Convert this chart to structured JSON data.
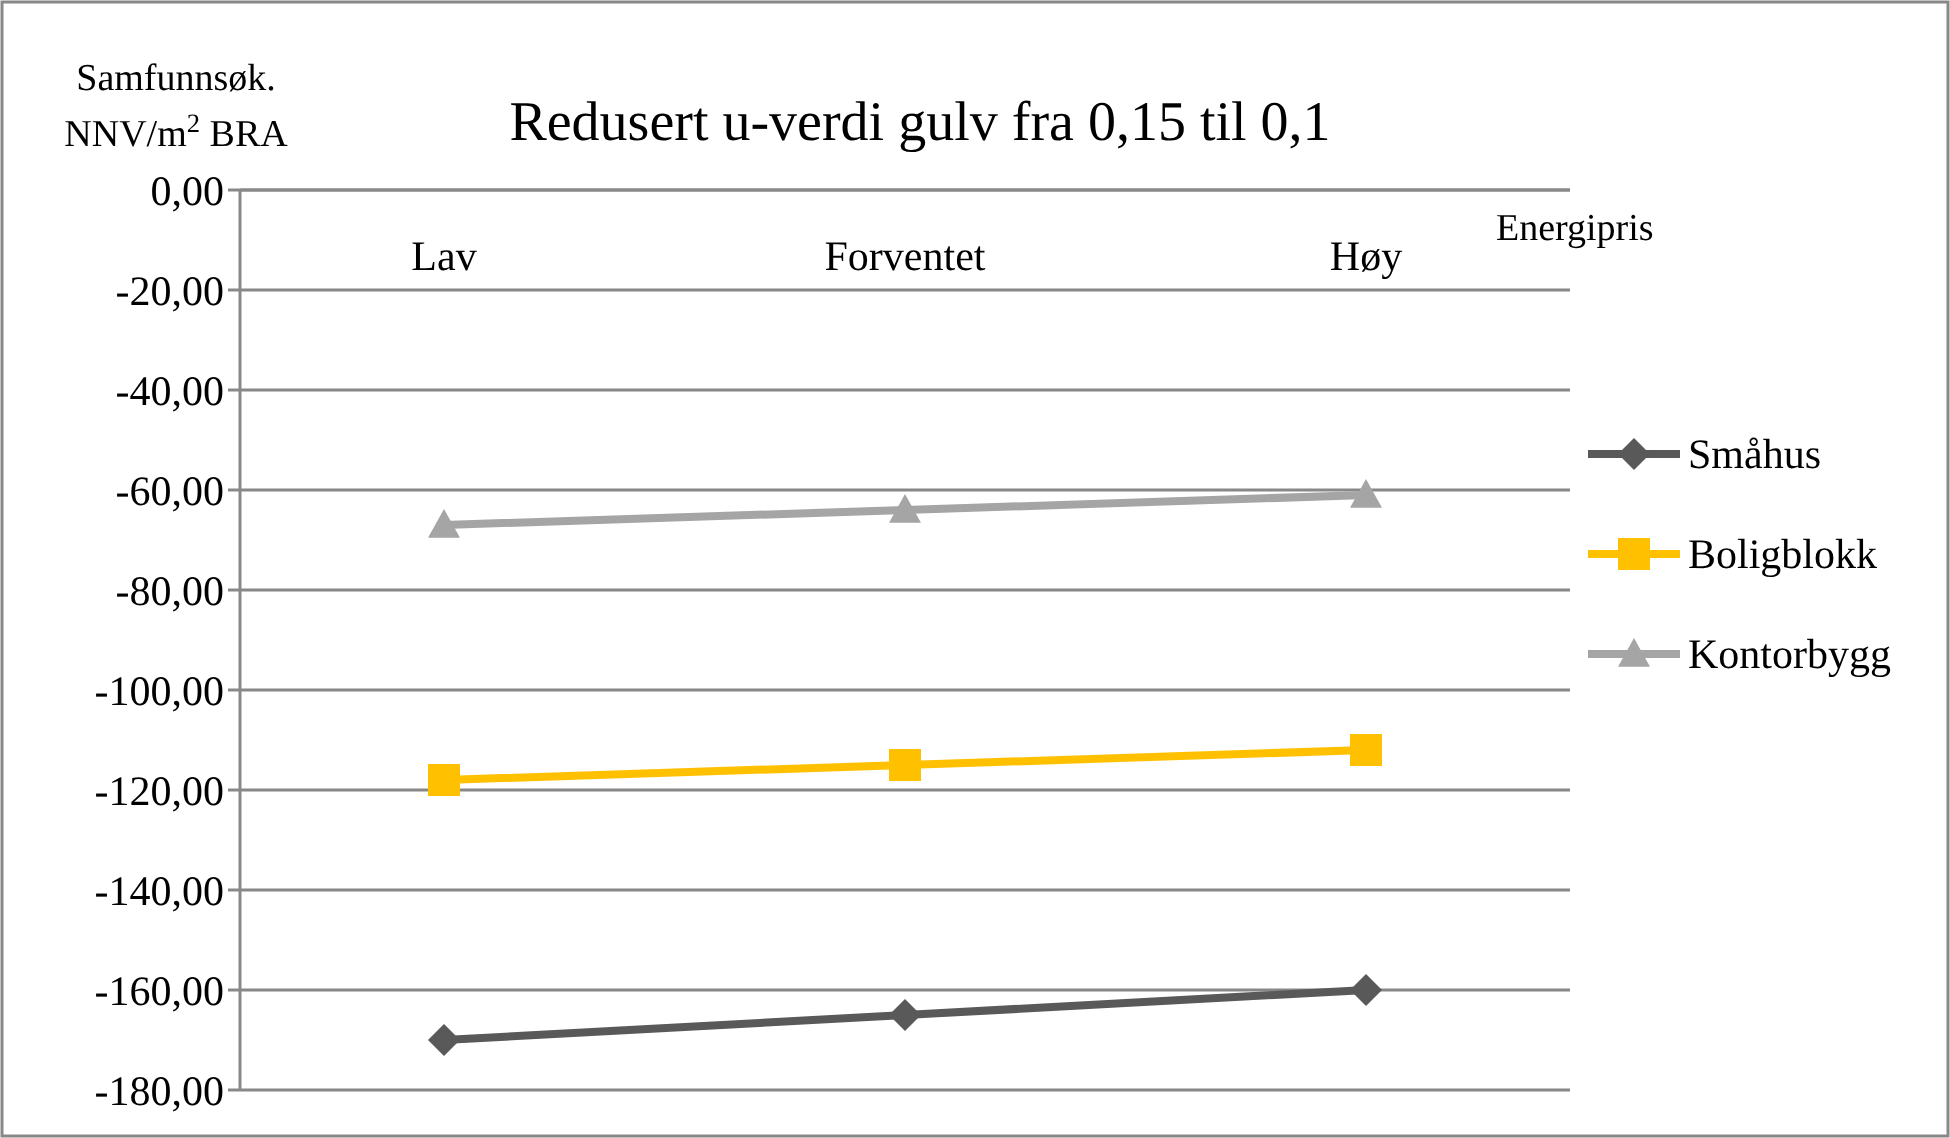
{
  "chart_data": {
    "type": "line",
    "title": "Redusert u-verdi gulv fra 0,15 til 0,1",
    "ylabel": "Samfunnsøk. NNV/m$^{2}$ BRA",
    "xlabel": "Energipris",
    "categories": [
      "Lav",
      "Forventet",
      "Høy"
    ],
    "series": [
      {
        "name": "Småhus",
        "color": "#595959",
        "marker": "diamond",
        "values": [
          -170,
          -165,
          -160
        ]
      },
      {
        "name": "Boligblokk",
        "color": "#ffc000",
        "marker": "square",
        "values": [
          -118,
          -115,
          -112
        ]
      },
      {
        "name": "Kontorbygg",
        "color": "#a5a5a5",
        "marker": "triangle",
        "values": [
          -67,
          -64,
          -61
        ]
      }
    ],
    "ylim": [
      -180,
      0
    ],
    "yticks": [
      {
        "value": 0,
        "label": "0,00"
      },
      {
        "value": -20,
        "label": "-20,00"
      },
      {
        "value": -40,
        "label": "-40,00"
      },
      {
        "value": -60,
        "label": "-60,00"
      },
      {
        "value": -80,
        "label": "-80,00"
      },
      {
        "value": -100,
        "label": "-100,00"
      },
      {
        "value": -120,
        "label": "-120,00"
      },
      {
        "value": -140,
        "label": "-140,00"
      },
      {
        "value": -160,
        "label": "-160,00"
      },
      {
        "value": -180,
        "label": "-180,00"
      }
    ],
    "grid": "y",
    "legend": "right"
  }
}
